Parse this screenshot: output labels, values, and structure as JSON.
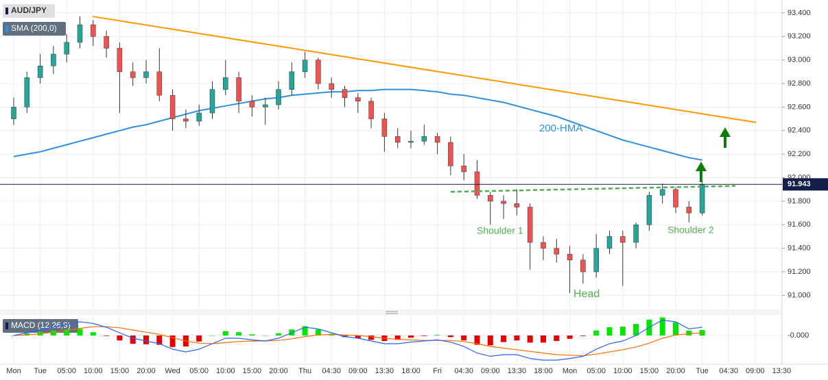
{
  "chart_data": {
    "type": "candlestick",
    "title": "AUD/JPY",
    "up_color": "#26a69a",
    "down_color": "#ef5350",
    "wick_color": "#333333",
    "categories": [
      "Mon",
      null,
      "Tue",
      null,
      "05:00",
      null,
      "10:00",
      null,
      "15:00",
      null,
      "20:00",
      null,
      "Wed",
      null,
      "05:00",
      null,
      "10:00",
      null,
      "15:00",
      null,
      "20:00",
      null,
      "Thu",
      null,
      "04:30",
      null,
      "09:00",
      null,
      "13:30",
      null,
      "18:00",
      null,
      "Fri",
      null,
      "04:30",
      null,
      "09:00",
      null,
      "13:30",
      null,
      "18:00",
      null,
      "Mon",
      null,
      "05:00",
      null,
      "10:00",
      null,
      "15:00",
      null,
      "20:00",
      null,
      "Tue",
      null,
      "04:30",
      null,
      "09:00",
      null,
      "13:30"
    ],
    "ohlc": [
      [
        92.5,
        92.68,
        92.45,
        92.6
      ],
      [
        92.6,
        92.9,
        92.55,
        92.85
      ],
      [
        92.85,
        93.05,
        92.8,
        92.95
      ],
      [
        92.95,
        93.12,
        92.88,
        93.05
      ],
      [
        93.05,
        93.22,
        92.98,
        93.15
      ],
      [
        93.15,
        93.37,
        93.1,
        93.3
      ],
      [
        93.3,
        93.34,
        93.12,
        93.2
      ],
      [
        93.2,
        93.25,
        93.02,
        93.1
      ],
      [
        93.1,
        93.15,
        92.55,
        92.9
      ],
      [
        92.9,
        92.98,
        92.78,
        92.85
      ],
      [
        92.85,
        93.0,
        92.8,
        92.9
      ],
      [
        92.9,
        93.1,
        92.65,
        92.7
      ],
      [
        92.7,
        92.75,
        92.4,
        92.5
      ],
      [
        92.5,
        92.58,
        92.42,
        92.48
      ],
      [
        92.48,
        92.62,
        92.44,
        92.55
      ],
      [
        92.55,
        92.82,
        92.5,
        92.75
      ],
      [
        92.75,
        93.0,
        92.7,
        92.85
      ],
      [
        92.85,
        92.9,
        92.55,
        92.65
      ],
      [
        92.65,
        92.7,
        92.52,
        92.6
      ],
      [
        92.6,
        92.68,
        92.45,
        92.62
      ],
      [
        92.62,
        92.82,
        92.58,
        92.75
      ],
      [
        92.75,
        92.98,
        92.7,
        92.9
      ],
      [
        92.9,
        93.07,
        92.85,
        93.0
      ],
      [
        93.0,
        93.02,
        92.75,
        92.8
      ],
      [
        92.8,
        92.85,
        92.68,
        92.75
      ],
      [
        92.75,
        92.78,
        92.6,
        92.68
      ],
      [
        92.68,
        92.72,
        92.55,
        92.65
      ],
      [
        92.65,
        92.68,
        92.42,
        92.5
      ],
      [
        92.5,
        92.55,
        92.22,
        92.35
      ],
      [
        92.35,
        92.42,
        92.25,
        92.3
      ],
      [
        92.3,
        92.4,
        92.25,
        92.31
      ],
      [
        92.31,
        92.45,
        92.28,
        92.35
      ],
      [
        92.35,
        92.38,
        92.2,
        92.3
      ],
      [
        92.3,
        92.35,
        92.02,
        92.1
      ],
      [
        92.1,
        92.2,
        91.98,
        92.05
      ],
      [
        92.05,
        92.15,
        91.82,
        91.85
      ],
      [
        91.85,
        91.88,
        91.6,
        91.8
      ],
      [
        91.8,
        91.85,
        91.65,
        91.78
      ],
      [
        91.78,
        91.9,
        91.68,
        91.75
      ],
      [
        91.75,
        91.78,
        91.22,
        91.45
      ],
      [
        91.45,
        91.5,
        91.3,
        91.4
      ],
      [
        91.4,
        91.48,
        91.28,
        91.35
      ],
      [
        91.35,
        91.42,
        91.02,
        91.3
      ],
      [
        91.3,
        91.35,
        91.1,
        91.2
      ],
      [
        91.2,
        91.52,
        91.15,
        91.4
      ],
      [
        91.4,
        91.55,
        91.35,
        91.5
      ],
      [
        91.5,
        91.55,
        91.08,
        91.45
      ],
      [
        91.45,
        91.62,
        91.4,
        91.6
      ],
      [
        91.6,
        91.88,
        91.55,
        91.85
      ],
      [
        91.85,
        91.95,
        91.78,
        91.9
      ],
      [
        91.9,
        91.92,
        91.7,
        91.75
      ],
      [
        91.75,
        91.8,
        91.62,
        91.7
      ],
      [
        91.7,
        91.98,
        91.68,
        91.94
      ],
      null,
      null,
      null,
      null,
      null,
      null
    ],
    "series": [
      {
        "name": "SMA (200,0)",
        "color": "#2e8fdf",
        "values": [
          92.18,
          92.2,
          92.22,
          92.25,
          92.28,
          92.31,
          92.34,
          92.37,
          92.4,
          92.43,
          92.45,
          92.48,
          92.51,
          92.54,
          92.57,
          92.59,
          92.61,
          92.63,
          92.65,
          92.67,
          92.68,
          92.7,
          92.71,
          92.72,
          92.73,
          92.73,
          92.74,
          92.74,
          92.75,
          92.75,
          92.75,
          92.74,
          92.73,
          92.71,
          92.7,
          92.68,
          92.66,
          92.64,
          92.61,
          92.58,
          92.55,
          92.52,
          92.48,
          92.44,
          92.4,
          92.36,
          92.32,
          92.29,
          92.26,
          92.23,
          92.2,
          92.17,
          92.15,
          null,
          null,
          null,
          null,
          null,
          null
        ]
      }
    ],
    "trendline": {
      "color": "#ff9800",
      "values": [
        93.37,
        92.47
      ]
    },
    "neckline": {
      "color": "#4caf50",
      "values": [
        91.88,
        91.93
      ]
    },
    "last_price": {
      "value": 91.943,
      "label": "91.943",
      "color": "#131f4a"
    },
    "ylim": [
      90.88,
      93.51
    ],
    "yticks": [
      {
        "value": 91.0,
        "label": "91.000"
      },
      {
        "value": 91.2,
        "label": "91.200"
      },
      {
        "value": 91.4,
        "label": "91.400"
      },
      {
        "value": 91.6,
        "label": "91.600"
      },
      {
        "value": 91.8,
        "label": "91.800"
      },
      {
        "value": 92.0,
        "label": "92.000"
      },
      {
        "value": 92.2,
        "label": "92.200"
      },
      {
        "value": 92.4,
        "label": "92.400"
      },
      {
        "value": 92.6,
        "label": "92.600"
      },
      {
        "value": 92.8,
        "label": "92.800"
      },
      {
        "value": 93.0,
        "label": "93.000"
      },
      {
        "value": 93.2,
        "label": "93.200"
      },
      {
        "value": 93.4,
        "label": "93.400"
      }
    ],
    "grid": true,
    "annotations": {
      "hma": "200-HMA",
      "shoulder1": "Shoulder 1",
      "shoulder2": "Shoulder 2",
      "head": "Head"
    },
    "macd": {
      "title": "MACD (12,26,9)",
      "ylim": [
        -0.5,
        0.35
      ],
      "yticks": [
        {
          "value": 0,
          "label": "-0.000"
        }
      ],
      "macd_color": "#2962ff",
      "signal_color": "#ff6d00",
      "up_color": "#00e600",
      "down_color": "#e60000",
      "macd_line": [
        0,
        0.05,
        0.1,
        0.15,
        0.2,
        0.25,
        0.22,
        0.15,
        0.05,
        -0.05,
        -0.1,
        -0.15,
        -0.25,
        -0.3,
        -0.25,
        -0.15,
        -0.05,
        -0.05,
        -0.08,
        -0.1,
        -0.05,
        0.05,
        0.15,
        0.12,
        0.05,
        -0.02,
        -0.05,
        -0.1,
        -0.15,
        -0.15,
        -0.12,
        -0.1,
        -0.08,
        -0.12,
        -0.2,
        -0.32,
        -0.38,
        -0.35,
        -0.35,
        -0.42,
        -0.45,
        -0.45,
        -0.42,
        -0.38,
        -0.25,
        -0.15,
        -0.1,
        0,
        0.15,
        0.28,
        0.25,
        0.12,
        0.15,
        null,
        null,
        null,
        null,
        null,
        null
      ],
      "signal": [
        0,
        0.01,
        0.03,
        0.06,
        0.09,
        0.13,
        0.16,
        0.16,
        0.14,
        0.1,
        0.06,
        0.02,
        -0.04,
        -0.1,
        -0.14,
        -0.15,
        -0.13,
        -0.11,
        -0.1,
        -0.1,
        -0.09,
        -0.06,
        -0.02,
        0.01,
        0.02,
        0.01,
        0,
        -0.02,
        -0.05,
        -0.07,
        -0.08,
        -0.09,
        -0.09,
        -0.09,
        -0.11,
        -0.15,
        -0.2,
        -0.23,
        -0.26,
        -0.29,
        -0.32,
        -0.35,
        -0.36,
        -0.37,
        -0.34,
        -0.3,
        -0.26,
        -0.21,
        -0.14,
        -0.05,
        0.01,
        0.03,
        0.05,
        null,
        null,
        null,
        null,
        null,
        null
      ],
      "histogram": [
        0,
        0.04,
        0.07,
        0.09,
        0.11,
        0.12,
        0.06,
        -0.01,
        -0.09,
        -0.15,
        -0.16,
        -0.17,
        -0.21,
        -0.2,
        -0.11,
        0,
        0.08,
        0.06,
        0.02,
        0,
        0.04,
        0.11,
        0.17,
        0.11,
        0.03,
        -0.03,
        -0.05,
        -0.08,
        -0.1,
        -0.08,
        -0.04,
        -0.01,
        0.01,
        -0.03,
        -0.09,
        -0.17,
        -0.18,
        -0.12,
        -0.09,
        -0.13,
        -0.13,
        -0.1,
        -0.06,
        -0.01,
        0.09,
        0.15,
        0.16,
        0.21,
        0.29,
        0.33,
        0.24,
        0.09,
        0.1,
        null,
        null,
        null,
        null,
        null,
        null
      ]
    }
  }
}
